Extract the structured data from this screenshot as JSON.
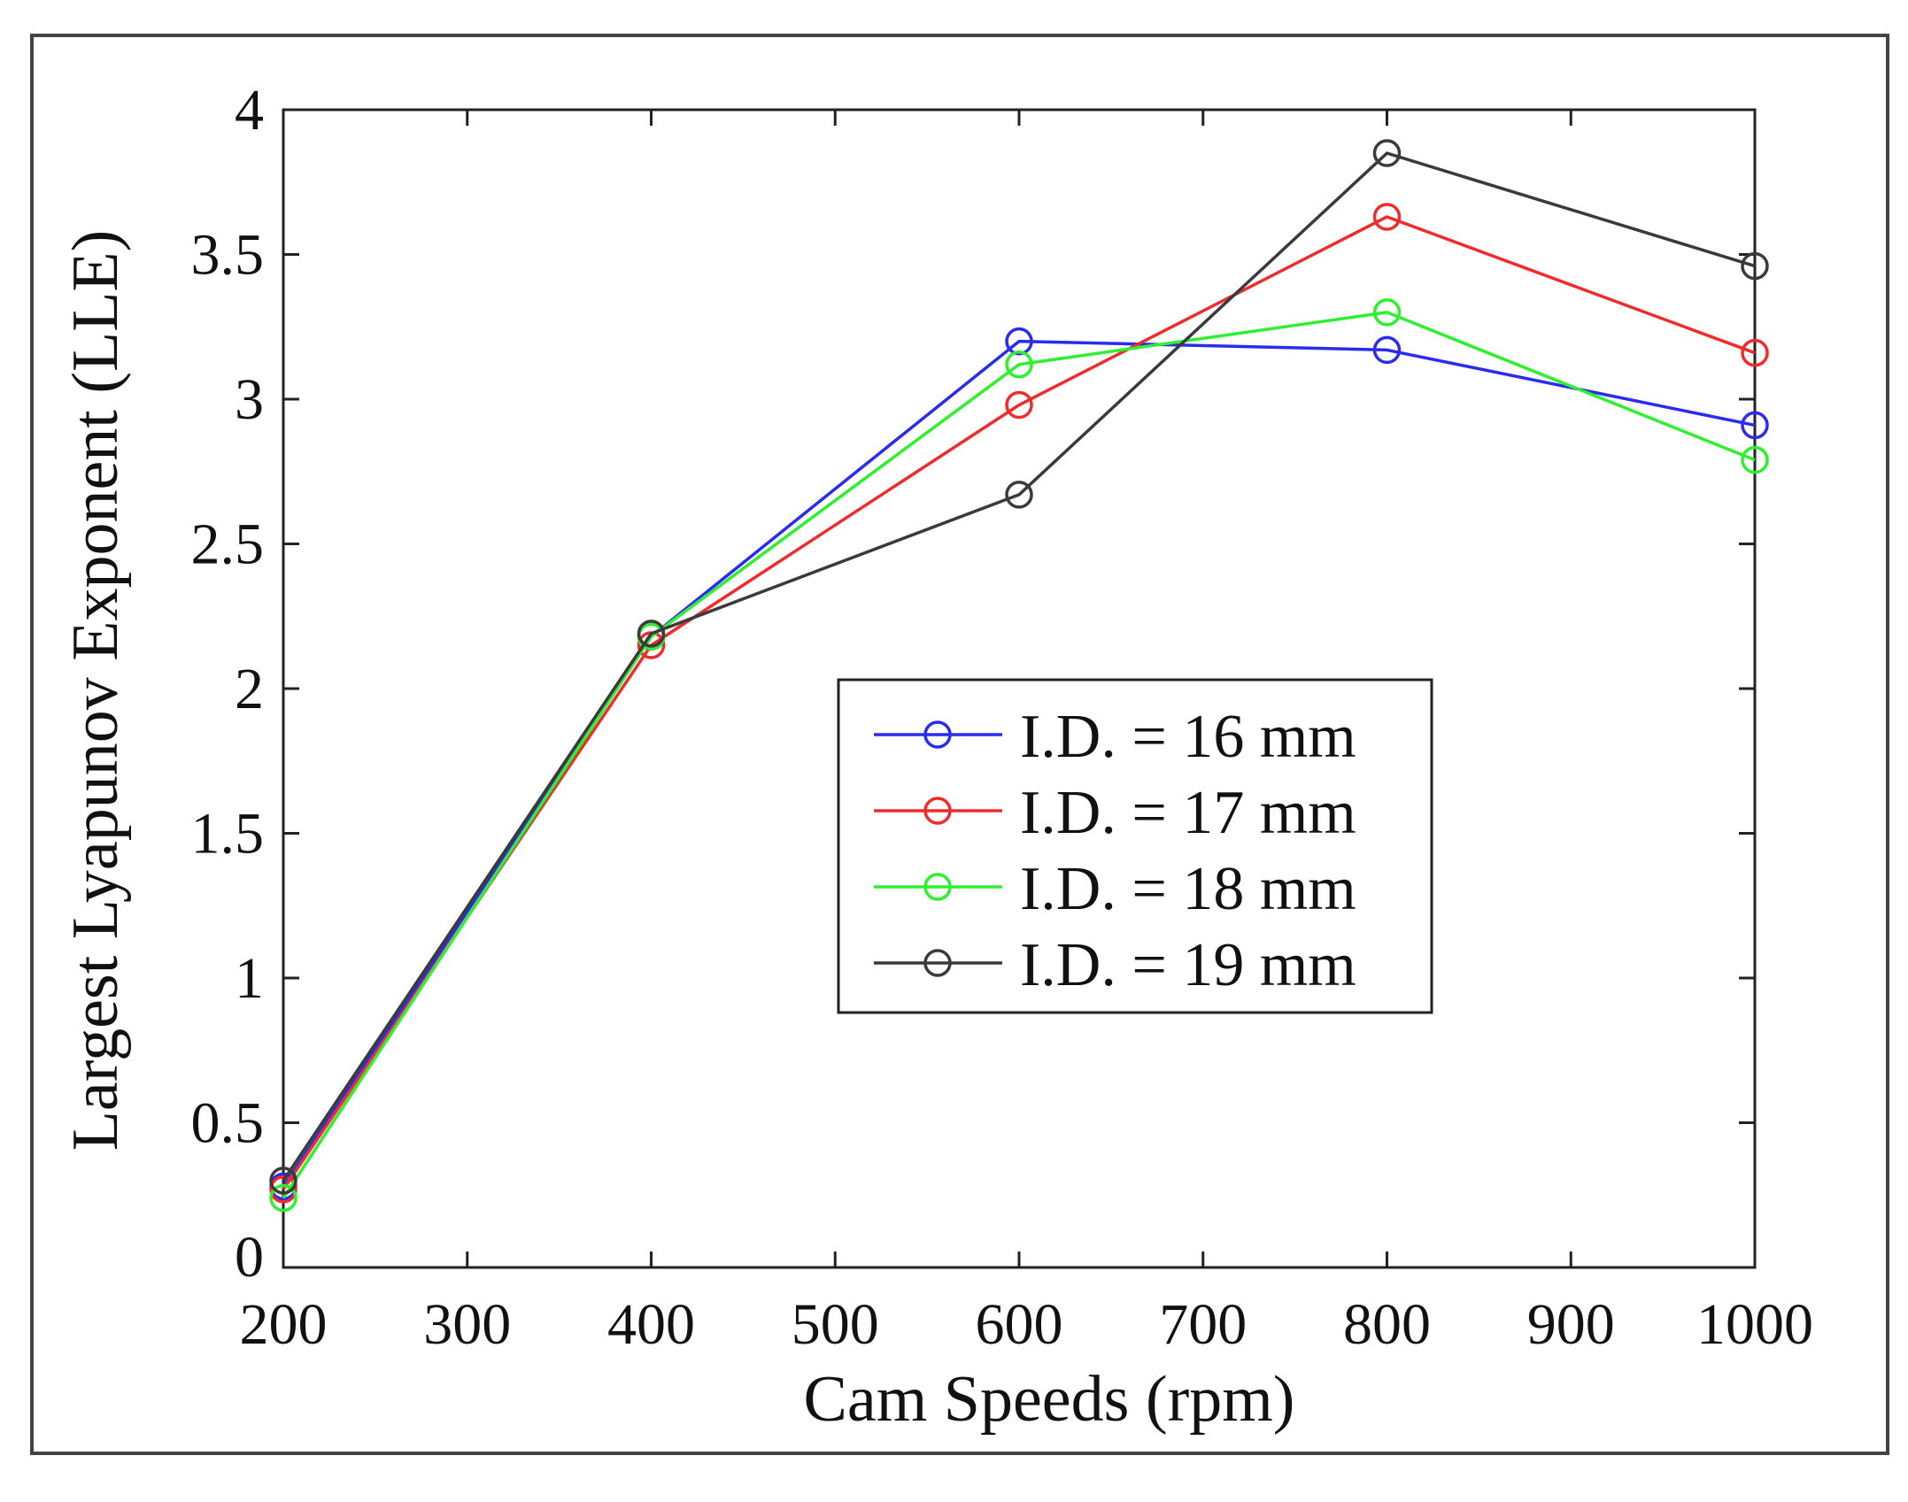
{
  "chart_data": {
    "type": "line",
    "title": "",
    "xlabel": "Cam Speeds (rpm)",
    "ylabel": "Largest Lyapunov Exponent (LLE)",
    "xlim": [
      200,
      1000
    ],
    "ylim": [
      0,
      4
    ],
    "xticks": [
      200,
      300,
      400,
      500,
      600,
      700,
      800,
      900,
      1000
    ],
    "yticks": [
      0,
      0.5,
      1,
      1.5,
      2,
      2.5,
      3,
      3.5,
      4
    ],
    "xtick_labels": [
      "200",
      "300",
      "400",
      "500",
      "600",
      "700",
      "800",
      "900",
      "1000"
    ],
    "ytick_labels": [
      "0",
      "0.5",
      "1",
      "1.5",
      "2",
      "2.5",
      "3",
      "3.5",
      "4"
    ],
    "grid": false,
    "legend_position": "center-right",
    "x": [
      200,
      400,
      600,
      800,
      1000
    ],
    "series": [
      {
        "name": "I.D. = 16 mm",
        "color": "#2b2bf0",
        "values": [
          0.28,
          2.18,
          3.2,
          3.17,
          2.91
        ]
      },
      {
        "name": "I.D. = 17 mm",
        "color": "#f02b2b",
        "values": [
          0.27,
          2.15,
          2.98,
          3.63,
          3.16
        ]
      },
      {
        "name": "I.D. = 18 mm",
        "color": "#2ef02e",
        "values": [
          0.24,
          2.18,
          3.12,
          3.3,
          2.79
        ]
      },
      {
        "name": "I.D. = 19 mm",
        "color": "#3a3a3a",
        "values": [
          0.3,
          2.19,
          2.67,
          3.85,
          3.46
        ]
      }
    ]
  }
}
